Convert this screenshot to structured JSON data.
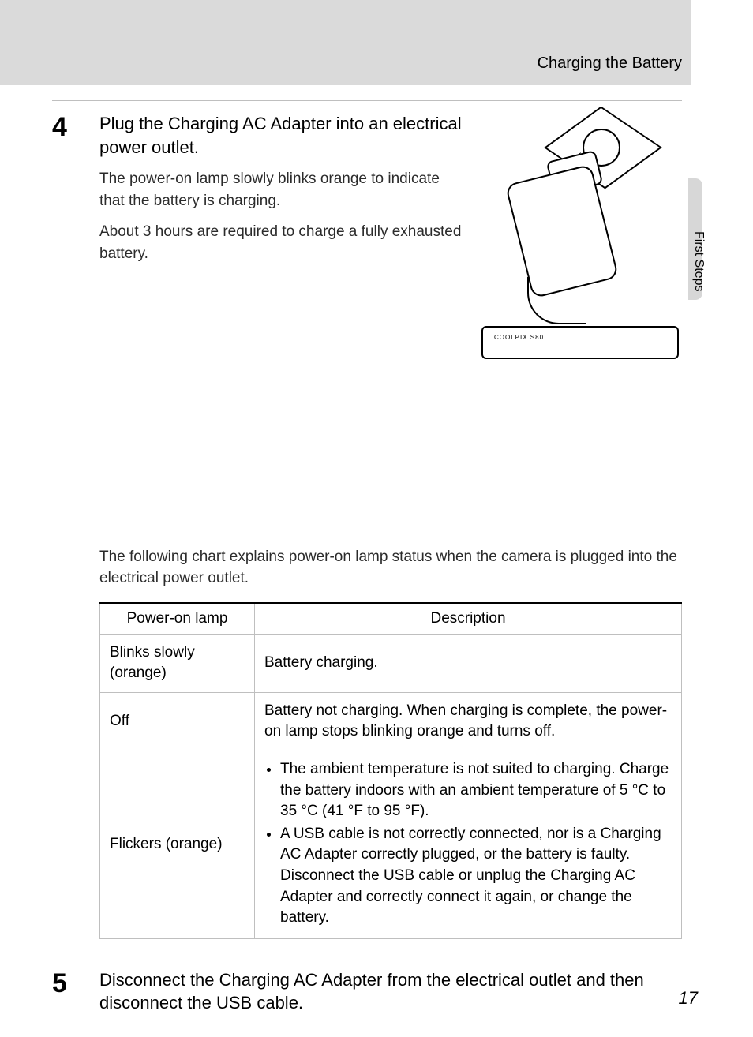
{
  "header": {
    "title": "Charging the Battery"
  },
  "side_tab": {
    "label": "First Steps"
  },
  "step4": {
    "number": "4",
    "heading": "Plug the Charging AC Adapter into an electrical power outlet.",
    "para1": "The power-on lamp slowly blinks orange to indicate that the battery is charging.",
    "para2": "About 3 hours are required to charge a fully exhausted battery.",
    "camera_label": "COOLPIX S80"
  },
  "chart_intro": "The following chart explains power-on lamp status when the camera is plugged into the electrical power outlet.",
  "table": {
    "columns": [
      "Power-on lamp",
      "Description"
    ],
    "rows": [
      {
        "lamp": "Blinks slowly (orange)",
        "desc": "Battery charging."
      },
      {
        "lamp": "Off",
        "desc": "Battery not charging. When charging is complete, the power-on lamp stops blinking orange and turns off."
      },
      {
        "lamp": "Flickers (orange)",
        "bullets": [
          "The ambient temperature is not suited to charging. Charge the battery indoors with an ambient temperature of 5 °C to 35 °C (41 °F to 95 °F).",
          "A USB cable is not correctly connected, nor is a Charging AC Adapter correctly plugged, or the battery is faulty. Disconnect the USB cable or unplug the Charging AC Adapter and correctly connect it again, or change the battery."
        ]
      }
    ]
  },
  "step5": {
    "number": "5",
    "heading": "Disconnect the Charging AC Adapter from the electrical outlet and then disconnect the USB cable."
  },
  "page_number": "17"
}
